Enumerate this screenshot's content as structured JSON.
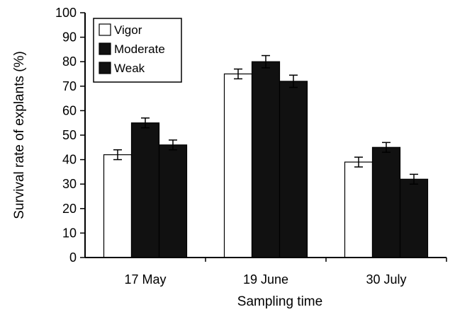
{
  "chart_data": {
    "type": "bar",
    "title": "",
    "xlabel": "Sampling time",
    "ylabel": "Survival rate of explants (%)",
    "ylim": [
      0,
      100
    ],
    "yticks": [
      0,
      10,
      20,
      30,
      40,
      50,
      60,
      70,
      80,
      90,
      100
    ],
    "categories": [
      "17 May",
      "19 June",
      "30 July"
    ],
    "series": [
      {
        "name": "Vigor",
        "values": [
          42,
          75,
          39
        ],
        "errors": [
          2,
          2,
          2
        ],
        "color": "#ffffff"
      },
      {
        "name": "Moderate",
        "values": [
          55,
          80,
          45
        ],
        "errors": [
          2,
          2.5,
          2
        ],
        "color": "#111111"
      },
      {
        "name": "Weak",
        "values": [
          46,
          72,
          32
        ],
        "errors": [
          2,
          2.5,
          2
        ],
        "color": "#111111"
      }
    ],
    "legend_position": "top-left",
    "grid": false
  }
}
